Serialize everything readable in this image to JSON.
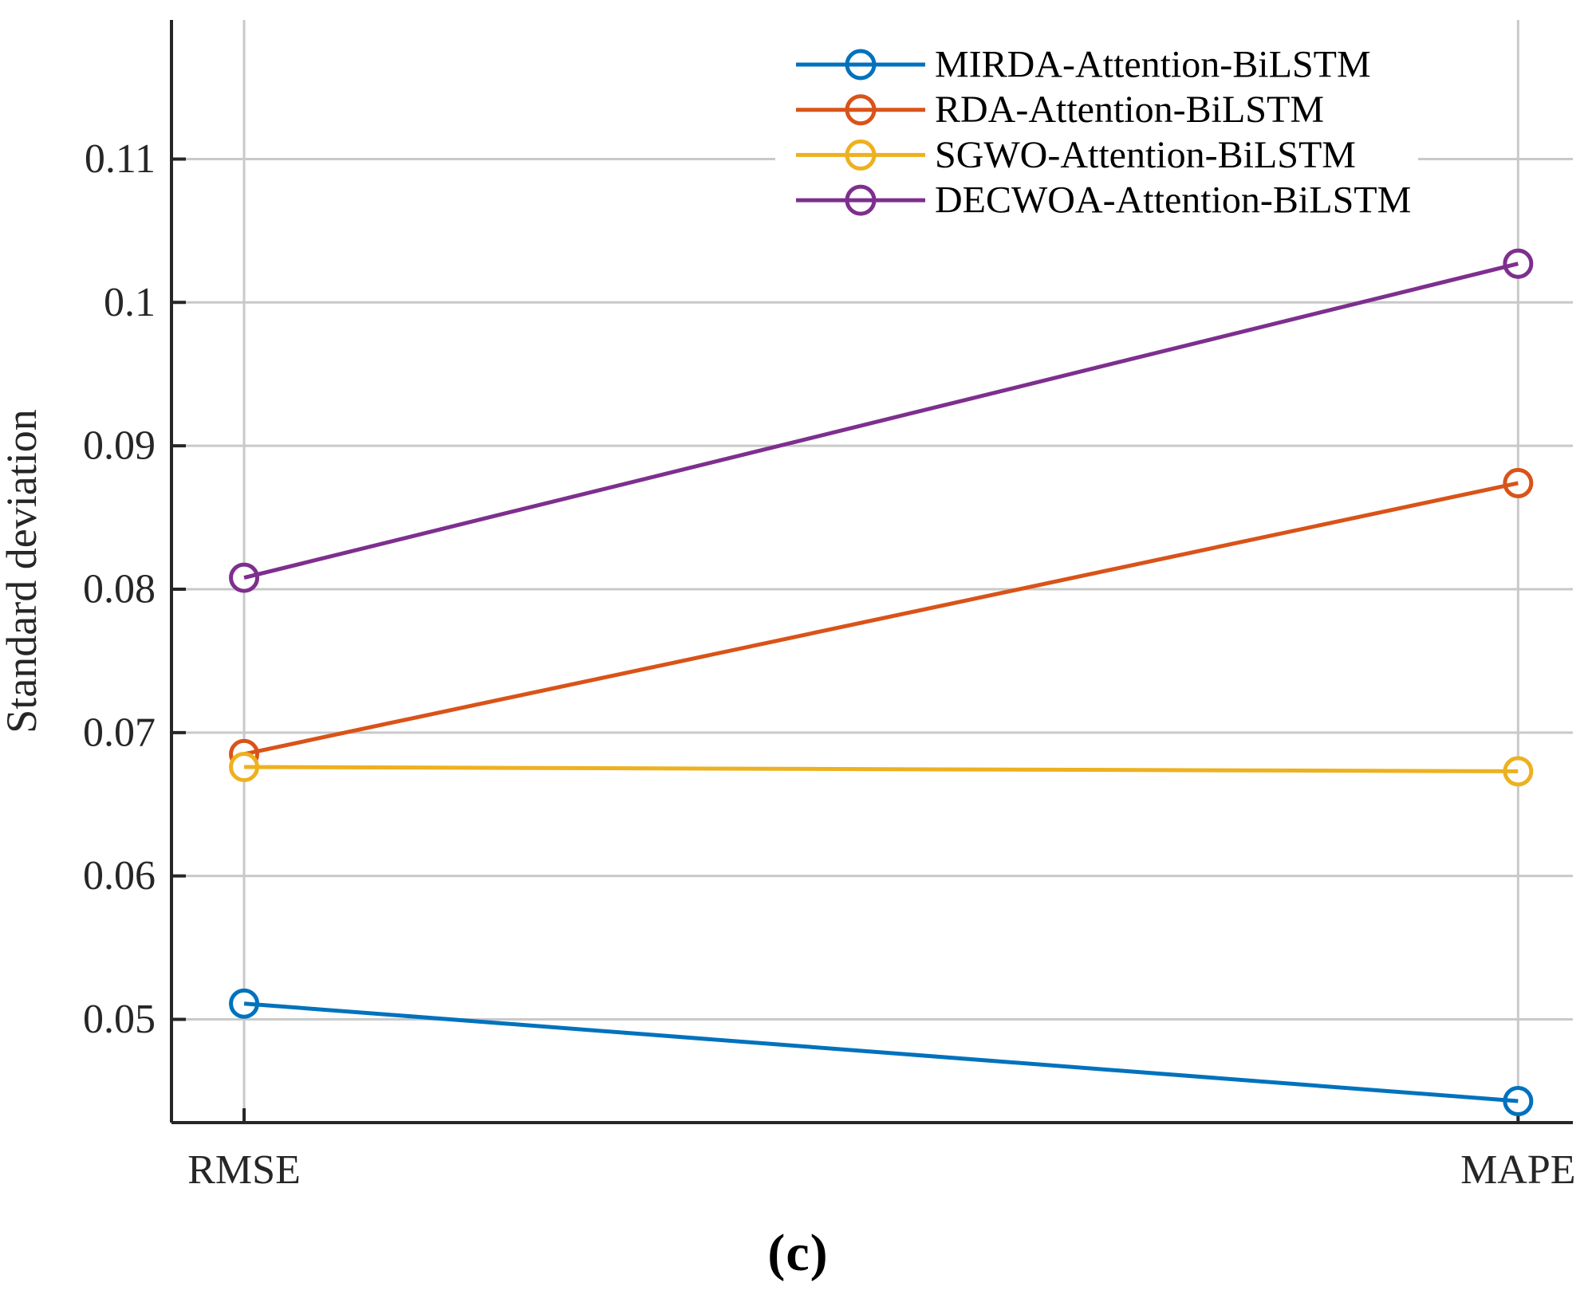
{
  "figure": {
    "caption": "(c)"
  },
  "chart_data": {
    "type": "line",
    "title": "",
    "xlabel": "",
    "ylabel": "Standard deviation",
    "categories": [
      "RMSE",
      "MAPE"
    ],
    "x": [
      1,
      2
    ],
    "xlim": [
      0.943,
      2.043
    ],
    "ylim": [
      0.0428,
      0.1197
    ],
    "yticks": [
      0.05,
      0.06,
      0.07,
      0.08,
      0.09,
      0.1,
      0.11
    ],
    "ytick_labels": [
      "0.05",
      "0.06",
      "0.07",
      "0.08",
      "0.09",
      "0.1",
      "0.11"
    ],
    "grid": true,
    "legend_position": "top-right-inside",
    "series": [
      {
        "name": "MIRDA-Attention-BiLSTM",
        "color": "#0072BD",
        "values": [
          0.0511,
          0.0443
        ]
      },
      {
        "name": "RDA-Attention-BiLSTM",
        "color": "#D95319",
        "values": [
          0.0685,
          0.0874
        ]
      },
      {
        "name": "SGWO-Attention-BiLSTM",
        "color": "#EDB120",
        "values": [
          0.0676,
          0.0673
        ]
      },
      {
        "name": "DECWOA-Attention-BiLSTM",
        "color": "#7E2F8E",
        "values": [
          0.0808,
          0.1027
        ]
      }
    ],
    "style": {
      "grid_color": "#C9C9C9",
      "axis_color": "#262626",
      "tick_label_color": "#262626",
      "legend_text_color": "#000000",
      "marker": "open-circle"
    }
  }
}
